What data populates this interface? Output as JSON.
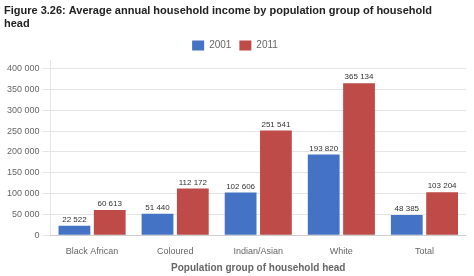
{
  "chart_data": {
    "type": "bar",
    "title": "Figure 3.26: Average annual household income by population group of household head",
    "categories": [
      "Black African",
      "Coloured",
      "Indian/Asian",
      "White",
      "Total"
    ],
    "series": [
      {
        "name": "2001",
        "color": "#4472C4",
        "values": [
          22522,
          51440,
          102606,
          193820,
          48385
        ],
        "value_labels": [
          "22 522",
          "51 440",
          "102 606",
          "193 820",
          "48 385"
        ]
      },
      {
        "name": "2011",
        "color": "#BE4B48",
        "values": [
          60613,
          112172,
          251541,
          365134,
          103204
        ],
        "value_labels": [
          "60 613",
          "112 172",
          "251 541",
          "365 134",
          "103 204"
        ]
      }
    ],
    "xlabel": "Population group of household head",
    "ylim": [
      0,
      420000
    ],
    "yticks": [
      0,
      {
        "value": 50000,
        "label": "50 000"
      },
      {
        "value": 100000,
        "label": "100 000"
      },
      {
        "value": 150000,
        "label": "150 000"
      },
      {
        "value": 200000,
        "label": "200 000"
      },
      {
        "value": 250000,
        "label": "250 000"
      },
      {
        "value": 300000,
        "label": "300 000"
      },
      {
        "value": 350000,
        "label": "350 000"
      },
      {
        "value": 400000,
        "label": "400 000"
      }
    ],
    "grid": true,
    "legend": "top",
    "data_labels": true
  }
}
